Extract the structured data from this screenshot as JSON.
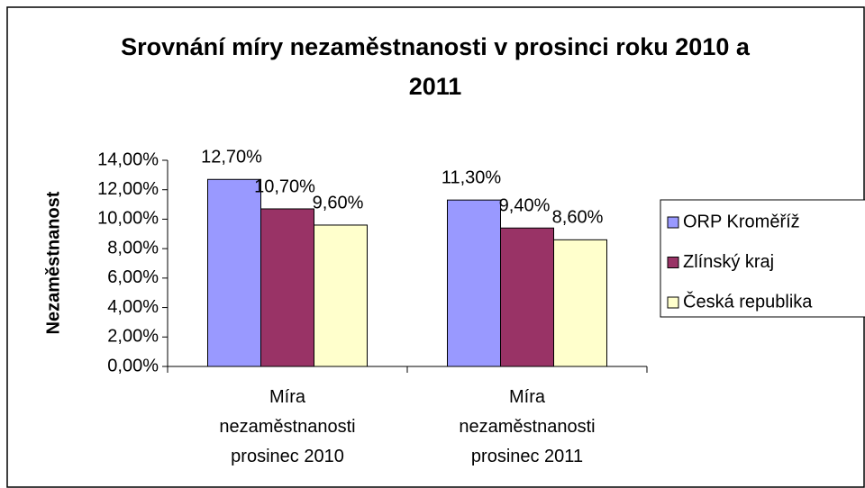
{
  "chart_data": {
    "type": "bar",
    "title": "Srovnání míry nezaměstnanosti v prosinci roku 2010 a 2011",
    "y_label": "Nezaměstnanost",
    "categories": [
      "Míra nezaměstnanosti prosinec 2010",
      "Míra nezaměstnanosti prosinec 2011"
    ],
    "series": [
      {
        "name": "ORP Kroměříž",
        "color": "#9999ff",
        "values": [
          12.7,
          11.3
        ],
        "value_labels": [
          "12,70%",
          "11,30%"
        ]
      },
      {
        "name": "Zlínský kraj",
        "color": "#993366",
        "values": [
          10.7,
          9.4
        ],
        "value_labels": [
          "10,70%",
          "9,40%"
        ]
      },
      {
        "name": "Česká republika",
        "color": "#ffffcc",
        "values": [
          9.6,
          8.6
        ],
        "value_labels": [
          "9,60%",
          "8,60%"
        ]
      }
    ],
    "ylim": [
      0,
      14
    ],
    "yticks": [
      {
        "value": 0,
        "label": "0,00%"
      },
      {
        "value": 2,
        "label": "2,00%"
      },
      {
        "value": 4,
        "label": "4,00%"
      },
      {
        "value": 6,
        "label": "6,00%"
      },
      {
        "value": 8,
        "label": "8,00%"
      },
      {
        "value": 10,
        "label": "10,00%"
      },
      {
        "value": 12,
        "label": "12,00%"
      },
      {
        "value": 14,
        "label": "14,00%"
      }
    ],
    "legend": "right"
  }
}
